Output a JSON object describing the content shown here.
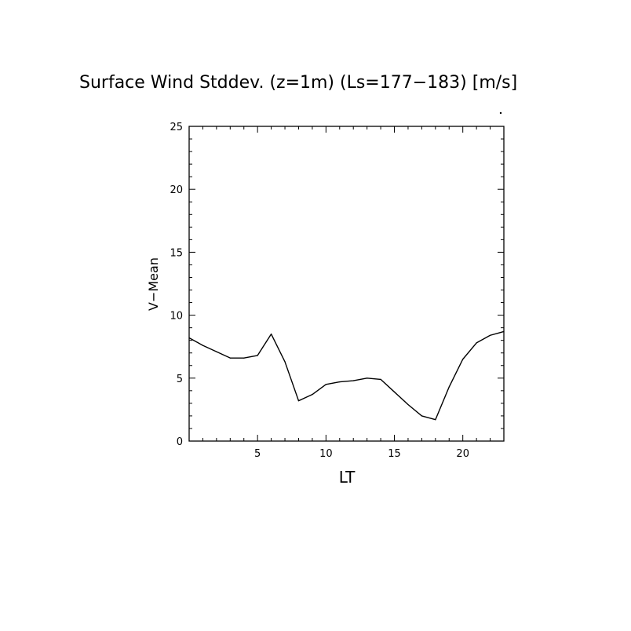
{
  "chart_data": {
    "type": "line",
    "title": "Surface Wind Stddev. (z=1m) (Ls=177−183) [m/s]",
    "xlabel": "LT",
    "ylabel": "V−Mean",
    "xlim": [
      0,
      23
    ],
    "ylim": [
      0,
      25
    ],
    "x_ticks": [
      5,
      10,
      15,
      20
    ],
    "x_tick_labels": [
      "5",
      "10",
      "15",
      "20"
    ],
    "y_ticks": [
      0,
      5,
      10,
      15,
      20,
      25
    ],
    "y_tick_labels": [
      "0",
      "5",
      "10",
      "15",
      "20",
      "25"
    ],
    "x_minor_step": 1,
    "y_minor_step": 1,
    "grid": false,
    "line_color": "#000000",
    "series": [
      {
        "x": [
          0,
          1,
          2,
          3,
          4,
          5,
          6,
          7,
          8,
          9,
          10,
          11,
          12,
          13,
          14,
          15,
          16,
          17,
          18,
          19,
          20,
          21,
          22,
          23
        ],
        "values": [
          8.2,
          7.6,
          7.1,
          6.6,
          6.6,
          6.8,
          8.5,
          6.3,
          3.2,
          3.7,
          4.5,
          4.7,
          4.8,
          5.0,
          4.9,
          3.9,
          2.9,
          2.0,
          1.7,
          4.3,
          6.5,
          7.8,
          8.4,
          8.7
        ]
      }
    ]
  }
}
